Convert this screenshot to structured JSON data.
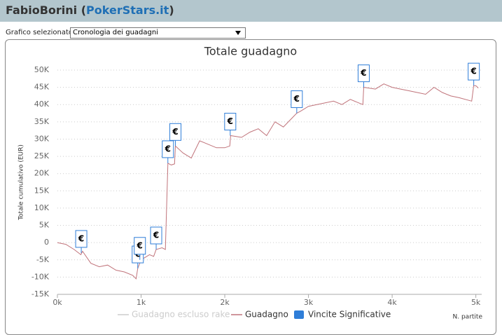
{
  "header": {
    "title_parts": [
      "FabioBorini (",
      "PokerStars.it",
      ")"
    ]
  },
  "selector": {
    "label": "Grafico selezionato",
    "value": "Cronologia dei guadagni"
  },
  "chart_data": {
    "type": "line",
    "title": "Totale guadagno",
    "y_label": "Totale cumulativo (EUR)",
    "x_label": "N. partite",
    "xlim": [
      0,
      5070
    ],
    "ylim": [
      -15000,
      50000
    ],
    "xticks": [
      {
        "value": 0,
        "label": "0k"
      },
      {
        "value": 1000,
        "label": "1k"
      },
      {
        "value": 2000,
        "label": "2k"
      },
      {
        "value": 3000,
        "label": "3k"
      },
      {
        "value": 4000,
        "label": "4k"
      },
      {
        "value": 5000,
        "label": "5k"
      }
    ],
    "yticks": [
      {
        "value": -15000,
        "label": "-15K"
      },
      {
        "value": -10000,
        "label": "-10K"
      },
      {
        "value": -5000,
        "label": "-5K"
      },
      0,
      {
        "value": 5000,
        "label": "5K"
      },
      {
        "value": 10000,
        "label": "10K"
      },
      {
        "value": 15000,
        "label": "15K"
      },
      {
        "value": 20000,
        "label": "20K"
      },
      {
        "value": 25000,
        "label": "25K"
      },
      {
        "value": 30000,
        "label": "30K"
      },
      {
        "value": 35000,
        "label": "35K"
      },
      {
        "value": 40000,
        "label": "40K"
      },
      {
        "value": 45000,
        "label": "45K"
      },
      {
        "value": 50000,
        "label": "50K"
      }
    ],
    "grid": true,
    "series": [
      {
        "name": "Guadagno escluso rake",
        "color": "#cccccc",
        "visible": false
      },
      {
        "name": "Guadagno",
        "color": "#c0737a",
        "x": [
          0,
          100,
          200,
          280,
          300,
          400,
          500,
          600,
          700,
          800,
          900,
          940,
          960,
          1000,
          1100,
          1150,
          1180,
          1250,
          1290,
          1320,
          1360,
          1400,
          1410,
          1500,
          1600,
          1700,
          1800,
          1900,
          2000,
          2060,
          2070,
          2200,
          2300,
          2400,
          2500,
          2600,
          2700,
          2800,
          2860,
          2900,
          3000,
          3100,
          3200,
          3300,
          3400,
          3500,
          3600,
          3650,
          3660,
          3800,
          3900,
          4000,
          4100,
          4200,
          4300,
          4400,
          4500,
          4600,
          4700,
          4800,
          4950,
          4975,
          5000,
          5030
        ],
        "values": [
          0,
          -500,
          -2000,
          -3500,
          -2500,
          -6000,
          -7000,
          -6500,
          -8000,
          -8500,
          -9500,
          -10500,
          -7500,
          -5000,
          -3500,
          -4000,
          -2000,
          -1500,
          -2000,
          23000,
          22500,
          22800,
          28000,
          26000,
          24500,
          29500,
          28500,
          27500,
          27500,
          28000,
          31000,
          30500,
          32000,
          33000,
          31000,
          35000,
          33500,
          36000,
          37500,
          38000,
          39500,
          40000,
          40500,
          41000,
          40000,
          41500,
          40500,
          40000,
          45000,
          44500,
          46000,
          45000,
          44500,
          44000,
          43500,
          43000,
          45000,
          43500,
          42500,
          42000,
          41000,
          45500,
          45500,
          44800
        ]
      },
      {
        "name": "Vincite Significative",
        "color": "#2f7ed8",
        "type": "flags",
        "marker_text": "€",
        "x": [
          285,
          960,
          985,
          1180,
          1320,
          1410,
          2065,
          2860,
          3660,
          4975
        ],
        "values": [
          -3000,
          -7500,
          -5000,
          -2000,
          23000,
          28000,
          31000,
          37500,
          45000,
          45500
        ]
      }
    ]
  }
}
